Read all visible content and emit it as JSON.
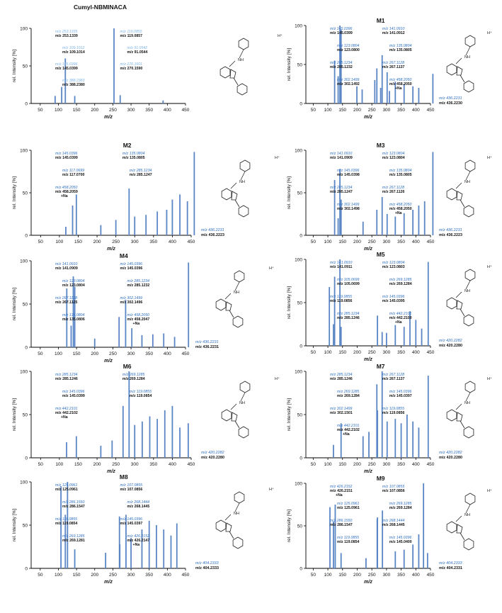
{
  "figure": {
    "shared_x_label": "m/z",
    "shared_y_label": "rel. Intensity [%]",
    "colors": {
      "bar": "#5b86c5",
      "label_blue": "#2f6fc0",
      "label_light": "#7fb4e6",
      "black": "#111111"
    }
  },
  "chart_data": [
    {
      "id": "parent",
      "title": "Cumyl-NBMINACA",
      "type": "bar",
      "xlim": [
        25,
        450
      ],
      "ylim": [
        0,
        100
      ],
      "xticks": [
        "50",
        "100",
        "150",
        "200",
        "250",
        "300",
        "350",
        "400",
        "450"
      ],
      "yticks": [
        "0",
        "50",
        "100"
      ],
      "xlabel": "m/z",
      "ylabel": "rel. Intensity [%]",
      "bars": [
        [
          91.05,
          10
        ],
        [
          109.1,
          22
        ],
        [
          119.09,
          60
        ],
        [
          145.04,
          10
        ],
        [
          253.13,
          100
        ],
        [
          270.16,
          11
        ],
        [
          388.24,
          4
        ]
      ],
      "annotations": [
        {
          "theo": "m/z 253.1335",
          "obs": "m/z 253.1339"
        },
        {
          "theo": "m/z 119.0855",
          "obs": "m/z 119.0857"
        },
        {
          "theo": "m/z 109.1012",
          "obs": "m/z 109.1014"
        },
        {
          "theo": "m/z 91.0542",
          "obs": "m/z 91.0544"
        },
        {
          "theo": "m/z 145.0396",
          "obs": "m/z 145.0399"
        },
        {
          "theo": "m/z 270.1601",
          "obs": "m/z 270.1590"
        },
        {
          "theo": "m/z 388.2383",
          "obs": "m/z 388.2380"
        }
      ],
      "structure_label": {
        "theo": "",
        "obs": ""
      }
    },
    {
      "id": "M1",
      "title": "M1",
      "type": "bar",
      "xlim": [
        25,
        450
      ],
      "ylim": [
        0,
        100
      ],
      "xticks": [
        "50",
        "100",
        "150",
        "200",
        "250",
        "300",
        "350",
        "400",
        "450"
      ],
      "yticks": [
        "0",
        "50",
        "100"
      ],
      "xlabel": "m/z",
      "ylabel": "rel. Intensity [%]",
      "bars": [
        [
          123.08,
          55
        ],
        [
          135.08,
          35
        ],
        [
          141.09,
          100
        ],
        [
          145.04,
          95
        ],
        [
          199,
          22
        ],
        [
          217,
          18
        ],
        [
          267.11,
          45
        ],
        [
          285.12,
          62
        ],
        [
          302.15,
          40
        ],
        [
          458.2,
          38
        ],
        [
          260,
          30
        ],
        [
          330,
          28
        ],
        [
          360,
          25
        ],
        [
          390,
          22
        ],
        [
          410,
          20
        ],
        [
          280,
          20
        ],
        [
          310,
          16
        ]
      ],
      "annotations": [
        {
          "theo": "m/z 145.0396",
          "obs": "m/z 145.0399"
        },
        {
          "theo": "m/z 141.0910",
          "obs": "m/z 141.0912"
        },
        {
          "theo": "m/z 123.0804",
          "obs": "m/z 123.0800"
        },
        {
          "theo": "m/z 135.0804",
          "obs": "m/z 135.0805"
        },
        {
          "theo": "m/z 285.1234",
          "obs": "m/z 285.1232"
        },
        {
          "theo": "m/z 267.1128",
          "obs": "m/z 267.1137"
        },
        {
          "theo": "m/z 302.1499",
          "obs": "m/z 302.1492"
        },
        {
          "theo": "m/z 458.2050",
          "obs": "m/z 458.2050",
          "note": "+Na"
        }
      ],
      "structure_label": {
        "theo": "m/z 436.2231",
        "obs": "m/z 436.2230"
      }
    },
    {
      "id": "M2",
      "title": "M2",
      "type": "bar",
      "xlim": [
        25,
        450
      ],
      "ylim": [
        0,
        100
      ],
      "xticks": [
        "50",
        "100",
        "150",
        "200",
        "250",
        "300",
        "350",
        "400",
        "450"
      ],
      "yticks": [
        "0",
        "50",
        "100"
      ],
      "xlabel": "m/z",
      "ylabel": "rel. Intensity [%]",
      "bars": [
        [
          117.07,
          10
        ],
        [
          135.08,
          35
        ],
        [
          145.04,
          48
        ],
        [
          285.12,
          55
        ],
        [
          458.21,
          98
        ],
        [
          300,
          22
        ],
        [
          330,
          24
        ],
        [
          360,
          28
        ],
        [
          385,
          30
        ],
        [
          400,
          42
        ],
        [
          420,
          48
        ],
        [
          440,
          40
        ],
        [
          250,
          18
        ],
        [
          210,
          12
        ]
      ],
      "annotations": [
        {
          "theo": "m/z 145.0396",
          "obs": "m/z 145.0399"
        },
        {
          "theo": "m/z 135.0804",
          "obs": "m/z 135.0805"
        },
        {
          "theo": "m/z 117.0699",
          "obs": "m/z 117.0700"
        },
        {
          "theo": "m/z 285.1234",
          "obs": "m/z 285.1247"
        },
        {
          "theo": "m/z 458.2050",
          "obs": "m/z 458.2059",
          "note": "+Na"
        }
      ],
      "structure_label": {
        "theo": "m/z 436.2231",
        "obs": "m/z 436.2223"
      }
    },
    {
      "id": "M3",
      "title": "M3",
      "type": "bar",
      "xlim": [
        25,
        450
      ],
      "ylim": [
        0,
        100
      ],
      "xticks": [
        "50",
        "100",
        "150",
        "200",
        "250",
        "300",
        "350",
        "400",
        "450"
      ],
      "yticks": [
        "0",
        "50",
        "100"
      ],
      "xlabel": "m/z",
      "ylabel": "rel. Intensity [%]",
      "bars": [
        [
          123.08,
          65
        ],
        [
          135.08,
          20
        ],
        [
          141.09,
          78
        ],
        [
          145.04,
          42
        ],
        [
          267.11,
          30
        ],
        [
          285.12,
          45
        ],
        [
          302.15,
          25
        ],
        [
          458.2,
          98
        ],
        [
          330,
          22
        ],
        [
          360,
          26
        ],
        [
          390,
          30
        ],
        [
          410,
          35
        ],
        [
          430,
          40
        ],
        [
          220,
          16
        ]
      ],
      "annotations": [
        {
          "theo": "m/z 141.0910",
          "obs": "m/z 141.0909"
        },
        {
          "theo": "m/z 123.0804",
          "obs": "m/z 123.0804"
        },
        {
          "theo": "m/z 145.0396",
          "obs": "m/z 145.0398"
        },
        {
          "theo": "m/z 135.0804",
          "obs": "m/z 135.0805"
        },
        {
          "theo": "m/z 285.1234",
          "obs": "m/z 285.1247"
        },
        {
          "theo": "m/z 267.1128",
          "obs": "m/z 267.1126"
        },
        {
          "theo": "m/z 302.1499",
          "obs": "m/z 302.1498"
        },
        {
          "theo": "m/z 458.2050",
          "obs": "m/z 458.2050",
          "note": "+Na"
        }
      ],
      "structure_label": {
        "theo": "m/z 436.2231",
        "obs": "m/z 436.2223"
      }
    },
    {
      "id": "M4",
      "title": "M4",
      "type": "bar",
      "xlim": [
        25,
        450
      ],
      "ylim": [
        0,
        100
      ],
      "xticks": [
        "50",
        "100",
        "150",
        "200",
        "250",
        "300",
        "350",
        "400",
        "450"
      ],
      "yticks": [
        "0",
        "50",
        "100"
      ],
      "xlabel": "m/z",
      "ylabel": "rel. Intensity [%]",
      "bars": [
        [
          123.08,
          68
        ],
        [
          135.08,
          25
        ],
        [
          141.09,
          82
        ],
        [
          145.04,
          70
        ],
        [
          267.11,
          35
        ],
        [
          285.12,
          55
        ],
        [
          302.15,
          22
        ],
        [
          458.2,
          98
        ],
        [
          330,
          14
        ],
        [
          360,
          15
        ],
        [
          390,
          16
        ],
        [
          420,
          12
        ],
        [
          200,
          10
        ]
      ],
      "annotations": [
        {
          "theo": "m/z 141.0910",
          "obs": "m/z 141.0909"
        },
        {
          "theo": "m/z 145.0396",
          "obs": "m/z 145.0396"
        },
        {
          "theo": "m/z 123.0804",
          "obs": "m/z 123.0804"
        },
        {
          "theo": "m/z 285.1234",
          "obs": "m/z 285.1232"
        },
        {
          "theo": "m/z 267.1128",
          "obs": "m/z 267.1125"
        },
        {
          "theo": "m/z 302.1499",
          "obs": "m/z 302.1496"
        },
        {
          "theo": "m/z 135.0804",
          "obs": "m/z 135.0806"
        },
        {
          "theo": "m/z 458.2050",
          "obs": "m/z 458.2047",
          "note": "+Na"
        }
      ],
      "structure_label": {
        "theo": "m/z 436.2231",
        "obs": "m/z 436.2231"
      }
    },
    {
      "id": "M5",
      "title": "M5",
      "type": "bar",
      "xlim": [
        25,
        450
      ],
      "ylim": [
        0,
        100
      ],
      "xticks": [
        "50",
        "100",
        "150",
        "200",
        "250",
        "300",
        "350",
        "400",
        "450"
      ],
      "yticks": [
        "0",
        "50",
        "100"
      ],
      "xlabel": "m/z",
      "ylabel": "rel. Intensity [%]",
      "bars": [
        [
          105.07,
          68
        ],
        [
          119.09,
          25
        ],
        [
          123.08,
          80
        ],
        [
          141.09,
          100
        ],
        [
          145.04,
          22
        ],
        [
          269.13,
          35
        ],
        [
          285.12,
          16
        ],
        [
          442.21,
          97
        ],
        [
          330,
          24
        ],
        [
          360,
          22
        ],
        [
          380,
          40
        ],
        [
          400,
          30
        ],
        [
          420,
          20
        ],
        [
          300,
          15
        ]
      ],
      "annotations": [
        {
          "theo": "m/z 141.0910",
          "obs": "m/z 141.0911"
        },
        {
          "theo": "m/z 123.0804",
          "obs": "m/z 123.0803"
        },
        {
          "theo": "m/z 105.0699",
          "obs": "m/z 105.0699"
        },
        {
          "theo": "m/z 269.1285",
          "obs": "m/z 269.1284"
        },
        {
          "theo": "m/z 119.0855",
          "obs": "m/z 119.0856"
        },
        {
          "theo": "m/z 145.0396",
          "obs": "m/z 145.0395"
        },
        {
          "theo": "m/z 285.1234",
          "obs": "m/z 285.1246"
        },
        {
          "theo": "m/z 442.2101",
          "obs": "m/z 442.2100",
          "note": "+Na"
        }
      ],
      "structure_label": {
        "theo": "m/z 420.2282",
        "obs": "m/z 420.2280"
      }
    },
    {
      "id": "M6",
      "title": "M6",
      "type": "bar",
      "xlim": [
        25,
        450
      ],
      "ylim": [
        0,
        100
      ],
      "xticks": [
        "50",
        "100",
        "150",
        "200",
        "250",
        "300",
        "350",
        "400",
        "450"
      ],
      "yticks": [
        "0",
        "50",
        "100"
      ],
      "xlabel": "m/z",
      "ylabel": "rel. Intensity [%]",
      "bars": [
        [
          119.09,
          18
        ],
        [
          145.04,
          25
        ],
        [
          269.13,
          60
        ],
        [
          285.12,
          100
        ],
        [
          442.21,
          40
        ],
        [
          300,
          38
        ],
        [
          320,
          42
        ],
        [
          340,
          48
        ],
        [
          360,
          45
        ],
        [
          380,
          55
        ],
        [
          400,
          60
        ],
        [
          420,
          35
        ],
        [
          240,
          20
        ],
        [
          210,
          14
        ]
      ],
      "annotations": [
        {
          "theo": "m/z 285.1234",
          "obs": "m/z 285.1246"
        },
        {
          "theo": "m/z 269.1285",
          "obs": "m/z 269.1284"
        },
        {
          "theo": "m/z 145.0396",
          "obs": "m/z 145.0399"
        },
        {
          "theo": "m/z 119.0855",
          "obs": "m/z 119.0854"
        },
        {
          "theo": "m/z 442.2101",
          "obs": "m/z 442.2102",
          "note": "+Na"
        }
      ],
      "structure_label": {
        "theo": "m/z 420.2282",
        "obs": "m/z 420.2280"
      }
    },
    {
      "id": "M7",
      "title": "M7",
      "type": "bar",
      "xlim": [
        25,
        450
      ],
      "ylim": [
        0,
        100
      ],
      "xticks": [
        "50",
        "100",
        "150",
        "200",
        "250",
        "300",
        "350",
        "400",
        "450"
      ],
      "yticks": [
        "0",
        "50",
        "100"
      ],
      "xlabel": "m/z",
      "ylabel": "rel. Intensity [%]",
      "bars": [
        [
          119.09,
          15
        ],
        [
          145.04,
          40
        ],
        [
          267.11,
          85
        ],
        [
          269.13,
          55
        ],
        [
          285.12,
          100
        ],
        [
          302.15,
          42
        ],
        [
          442.21,
          95
        ],
        [
          330,
          45
        ],
        [
          350,
          40
        ],
        [
          370,
          50
        ],
        [
          390,
          42
        ],
        [
          410,
          35
        ],
        [
          220,
          25
        ],
        [
          240,
          30
        ]
      ],
      "annotations": [
        {
          "theo": "m/z 285.1234",
          "obs": "m/z 285.1246"
        },
        {
          "theo": "m/z 267.1128",
          "obs": "m/z 267.1137"
        },
        {
          "theo": "m/z 269.1285",
          "obs": "m/z 269.1284"
        },
        {
          "theo": "m/z 145.0396",
          "obs": "m/z 145.0397"
        },
        {
          "theo": "m/z 302.1499",
          "obs": "m/z 302.1501"
        },
        {
          "theo": "m/z 119.0855",
          "obs": "m/z 119.0856"
        },
        {
          "theo": "m/z 442.2101",
          "obs": "m/z 442.2102",
          "note": "+Na"
        }
      ],
      "structure_label": {
        "theo": "m/z 420.2282",
        "obs": "m/z 420.2280"
      }
    },
    {
      "id": "M8",
      "title": "M8",
      "type": "bar",
      "xlim": [
        25,
        450
      ],
      "ylim": [
        0,
        100
      ],
      "xticks": [
        "50",
        "100",
        "150",
        "200",
        "250",
        "300",
        "350",
        "400",
        "450"
      ],
      "yticks": [
        "0",
        "50",
        "100"
      ],
      "xlabel": "m/z",
      "ylabel": "rel. Intensity [%]",
      "bars": [
        [
          107.09,
          95
        ],
        [
          119.09,
          62
        ],
        [
          125.1,
          100
        ],
        [
          145.04,
          22
        ],
        [
          268.14,
          60
        ],
        [
          269.13,
          28
        ],
        [
          286.15,
          62
        ],
        [
          426.21,
          52
        ],
        [
          330,
          45
        ],
        [
          350,
          55
        ],
        [
          370,
          50
        ],
        [
          390,
          45
        ],
        [
          410,
          38
        ],
        [
          300,
          35
        ],
        [
          230,
          18
        ]
      ],
      "annotations": [
        {
          "theo": "m/z 125.0961",
          "obs": "m/z 125.0961"
        },
        {
          "theo": "m/z 107.0855",
          "obs": "m/z 107.0856"
        },
        {
          "theo": "m/z 286.1550",
          "obs": "m/z 286.1547"
        },
        {
          "theo": "m/z 268.1444",
          "obs": "m/z 268.1445"
        },
        {
          "theo": "m/z 119.0855",
          "obs": "m/z 119.0854"
        },
        {
          "theo": "m/z 145.0396",
          "obs": "m/z 145.0397"
        },
        {
          "theo": "m/z 269.1285",
          "obs": "m/z 269.1281"
        },
        {
          "theo": "m/z 426.2152",
          "obs": "m/z 426.2147",
          "note": "+Na"
        }
      ],
      "structure_label": {
        "theo": "m/z 404.2333",
        "obs": "m/z 404.2333"
      }
    },
    {
      "id": "M9",
      "title": "M9",
      "type": "bar",
      "xlim": [
        25,
        450
      ],
      "ylim": [
        0,
        100
      ],
      "xticks": [
        "50",
        "100",
        "150",
        "200",
        "250",
        "300",
        "350",
        "400",
        "450"
      ],
      "yticks": [
        "0",
        "50",
        "100"
      ],
      "xlabel": "m/z",
      "ylabel": "rel. Intensity [%]",
      "bars": [
        [
          107.09,
          72
        ],
        [
          119.09,
          55
        ],
        [
          125.1,
          75
        ],
        [
          145.04,
          18
        ],
        [
          268.14,
          58
        ],
        [
          269.13,
          60
        ],
        [
          286.15,
          68
        ],
        [
          426.22,
          100
        ],
        [
          330,
          20
        ],
        [
          360,
          22
        ],
        [
          390,
          28
        ],
        [
          410,
          40
        ],
        [
          440,
          18
        ],
        [
          230,
          12
        ]
      ],
      "annotations": [
        {
          "theo": "m/z 426.2152",
          "obs": "m/z 426.2151",
          "note": "+Na"
        },
        {
          "theo": "m/z 107.0855",
          "obs": "m/z 107.0856"
        },
        {
          "theo": "m/z 125.0961",
          "obs": "m/z 125.0961"
        },
        {
          "theo": "m/z 269.1285",
          "obs": "m/z 269.1284"
        },
        {
          "theo": "m/z 286.1550",
          "obs": "m/z 286.1547"
        },
        {
          "theo": "m/z 268.1444",
          "obs": "m/z 268.1445"
        },
        {
          "theo": "m/z 119.0855",
          "obs": "m/z 119.0854"
        },
        {
          "theo": "m/z 145.0396",
          "obs": "m/z 145.0400"
        }
      ],
      "structure_label": {
        "theo": "m/z 404.2333",
        "obs": "m/z 404.2331"
      }
    }
  ]
}
